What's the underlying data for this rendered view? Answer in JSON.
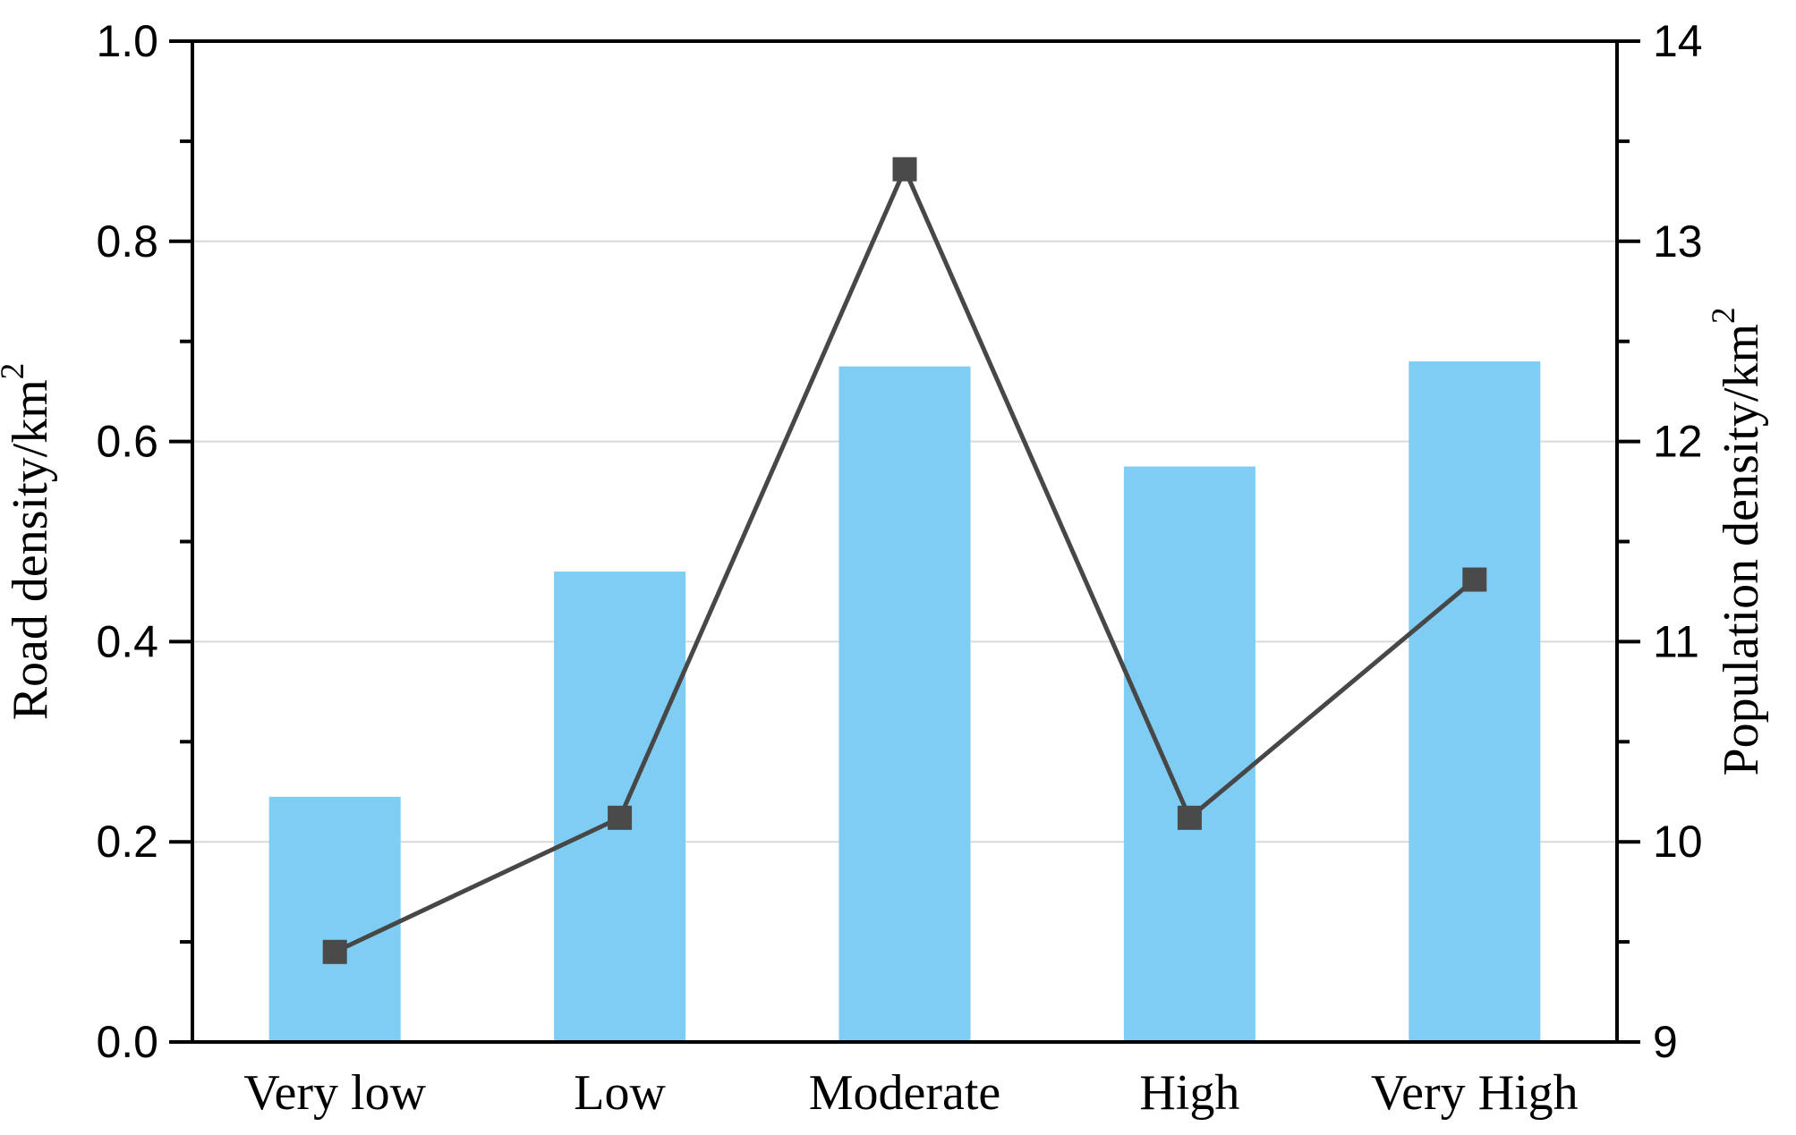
{
  "chart_data": {
    "type": "combo-bar-line",
    "title": "",
    "categories": [
      "Very low",
      "Low",
      "Moderate",
      "High",
      "Very High"
    ],
    "series": [
      {
        "name": "Road density",
        "chart": "bar",
        "axis": "left",
        "color": "#7FCDF2",
        "values": [
          0.245,
          0.47,
          0.675,
          0.575,
          0.68
        ]
      },
      {
        "name": "Population density",
        "chart": "line",
        "axis": "right",
        "color": "#474747",
        "marker": "square",
        "marker_color": "#4A4A4A",
        "values": [
          9.45,
          10.12,
          13.36,
          10.12,
          11.31
        ]
      }
    ],
    "left_axis": {
      "title": "Road density/km",
      "title_sup": "2",
      "min": 0,
      "max": 1,
      "major_step": 0.2,
      "minor_step": 0.1,
      "major_tick_labels": [
        "0.0",
        "0.2",
        "0.4",
        "0.6",
        "0.8",
        "1.0"
      ]
    },
    "right_axis": {
      "title": "Population density/km",
      "title_sup": "2",
      "min": 9,
      "max": 14,
      "major_step": 1,
      "minor_step": 0.5,
      "major_tick_labels": [
        "9",
        "10",
        "11",
        "12",
        "13",
        "14"
      ]
    },
    "grid": {
      "show": true,
      "color": "#D9D9D9"
    },
    "frame_color": "#000000",
    "background": "#FFFFFF",
    "legend": "none"
  }
}
